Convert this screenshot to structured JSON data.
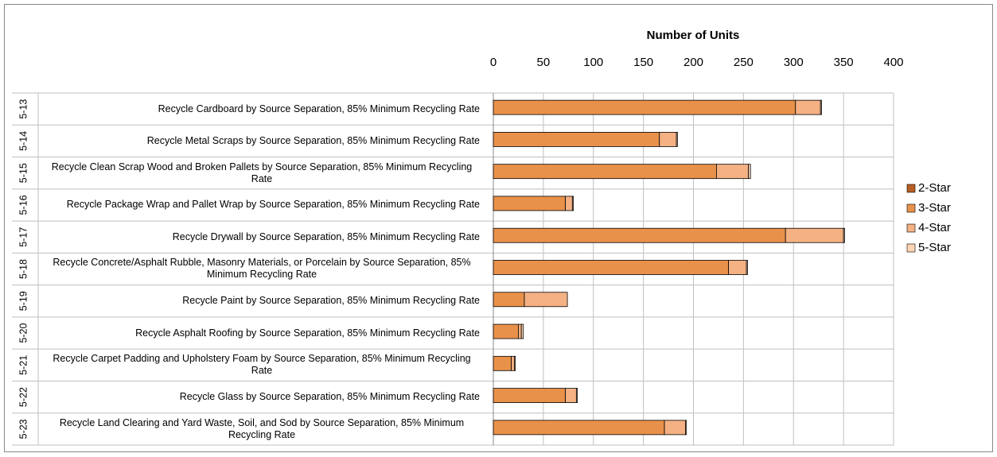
{
  "chart_data": {
    "type": "stacked_hbar",
    "xlabel": "Number of Units",
    "category_codes": [
      "5-13",
      "5-14",
      "5-15",
      "5-16",
      "5-17",
      "5-18",
      "5-19",
      "5-20",
      "5-21",
      "5-22",
      "5-23"
    ],
    "categories": [
      "Recycle Cardboard by Source Separation, 85% Minimum Recycling Rate",
      "Recycle Metal Scraps by Source Separation, 85% Minimum Recycling Rate",
      "Recycle Clean Scrap Wood and Broken Pallets by Source Separation, 85% Minimum Recycling Rate",
      "Recycle Package Wrap and Pallet Wrap by Source Separation, 85% Minimum Recycling Rate",
      "Recycle Drywall by Source Separation, 85% Minimum Recycling Rate",
      "Recycle Concrete/Asphalt Rubble, Masonry Materials, or Porcelain by Source Separation, 85% Minimum Recycling Rate",
      "Recycle Paint by Source Separation, 85% Minimum Recycling Rate",
      "Recycle Asphalt Roofing by Source Separation, 85% Minimum Recycling Rate",
      "Recycle Carpet Padding and Upholstery Foam by Source Separation, 85% Minimum Recycling Rate",
      "Recycle Glass by Source Separation, 85% Minimum Recycling Rate",
      "Recycle Land Clearing and Yard Waste, Soil, and Sod by Source Separation, 85% Minimum Recycling Rate"
    ],
    "series": [
      {
        "name": "2-Star",
        "color": "#b85e22",
        "values": [
          0,
          0,
          0,
          0,
          0,
          0,
          0,
          0,
          0,
          0,
          0
        ]
      },
      {
        "name": "3-Star",
        "color": "#e8914a",
        "values": [
          302,
          166,
          223,
          72,
          292,
          235,
          31,
          25,
          18,
          72,
          171
        ]
      },
      {
        "name": "4-Star",
        "color": "#f4b183",
        "values": [
          25,
          17,
          32,
          7,
          58,
          18,
          43,
          3,
          3,
          11,
          21
        ]
      },
      {
        "name": "5-Star",
        "color": "#fbd5b5",
        "values": [
          1,
          1,
          2,
          1,
          1,
          1,
          0,
          2,
          1,
          1,
          1
        ]
      }
    ],
    "xlim": [
      0,
      400
    ],
    "xticks": [
      0,
      50,
      100,
      150,
      200,
      250,
      300,
      350,
      400
    ],
    "grid": true,
    "legend": "right"
  }
}
